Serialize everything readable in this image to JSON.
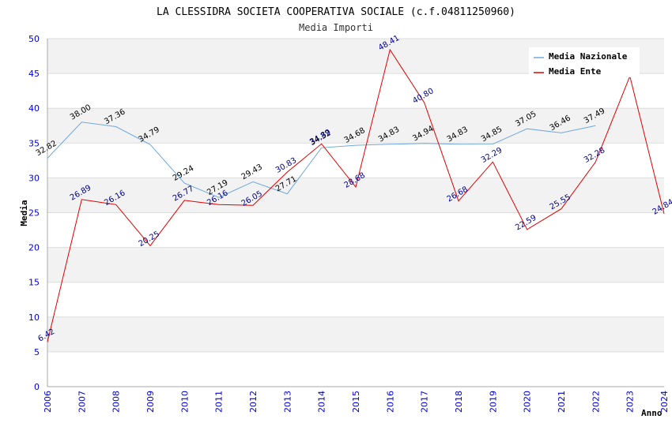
{
  "chart_data": {
    "type": "line",
    "title": "LA CLESSIDRA SOCIETA COOPERATIVA SOCIALE (c.f.04811250960)",
    "subtitle": "Media Importi",
    "xlabel": "Anno",
    "ylabel": "Media",
    "ylim": [
      0,
      50
    ],
    "yticks": [
      "0",
      "5",
      "10",
      "15",
      "20",
      "25",
      "30",
      "35",
      "40",
      "45",
      "50"
    ],
    "categories": [
      "2006",
      "2007",
      "2008",
      "2009",
      "2010",
      "2011",
      "2012",
      "2013",
      "2014",
      "2015",
      "2016",
      "2017",
      "2018",
      "2019",
      "2020",
      "2021",
      "2022",
      "2023",
      "2024"
    ],
    "legend_position": "top-right",
    "series": [
      {
        "name": "Media Nazionale",
        "color": "#6fa8dc",
        "label_color": "#000000",
        "values": [
          32.82,
          38.0,
          37.36,
          34.79,
          29.24,
          27.19,
          29.43,
          27.71,
          34.32,
          34.68,
          34.83,
          34.94,
          34.83,
          34.85,
          37.05,
          36.46,
          37.49,
          null,
          null
        ],
        "labels": [
          "32.82",
          "38.00",
          "37.36",
          "34.79",
          "29.24",
          "27.19",
          "29.43",
          "27.71",
          "34.32",
          "34.68",
          "34.83",
          "34.94",
          "34.83",
          "34.85",
          "37.05",
          "36.46",
          "37.49",
          "",
          ""
        ]
      },
      {
        "name": "Media Ente",
        "color": "#e00000",
        "label_color": "#00008b",
        "values": [
          6.42,
          26.89,
          26.16,
          20.25,
          26.77,
          26.16,
          26.05,
          30.83,
          34.89,
          28.68,
          48.41,
          40.8,
          26.68,
          32.29,
          22.59,
          25.55,
          32.28,
          44.6,
          24.84
        ],
        "labels": [
          "6.42",
          "26.89",
          "26.16",
          "20.25",
          "26.77",
          "26.16",
          "26.05",
          "30.83",
          "34.89",
          "28.68",
          "48.41",
          "40.80",
          "26.68",
          "32.29",
          "22.59",
          "25.55",
          "32.28",
          "",
          "24.84"
        ]
      }
    ]
  }
}
